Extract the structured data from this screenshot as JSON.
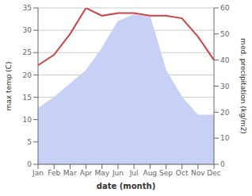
{
  "chart_data": {
    "type": "area",
    "categories": [
      "Jan",
      "Feb",
      "Mar",
      "Apr",
      "May",
      "Jun",
      "Jul",
      "Aug",
      "Sep",
      "Oct",
      "Nov",
      "Dec"
    ],
    "series": [
      {
        "type": "area",
        "color": "#c8d0f5",
        "values": [
          12.5,
          15,
          18,
          21,
          26,
          32,
          33.5,
          33,
          21,
          15,
          11,
          11
        ]
      },
      {
        "type": "line",
        "color": "#cc4444",
        "axis": "y2",
        "values": [
          38,
          42,
          50,
          60,
          57,
          58,
          58,
          57,
          57,
          56,
          49,
          40
        ]
      }
    ],
    "xlabel": "date (month)",
    "ylabel": "max temp (C)",
    "y2label": "med. precipitation (kg/m2)",
    "ylim": [
      0,
      35
    ],
    "yticks": [
      0,
      5,
      10,
      15,
      20,
      25,
      30,
      35
    ],
    "y2lim": [
      0,
      60
    ],
    "y2ticks": [
      0,
      10,
      20,
      30,
      40,
      50,
      60
    ],
    "grid": true
  }
}
